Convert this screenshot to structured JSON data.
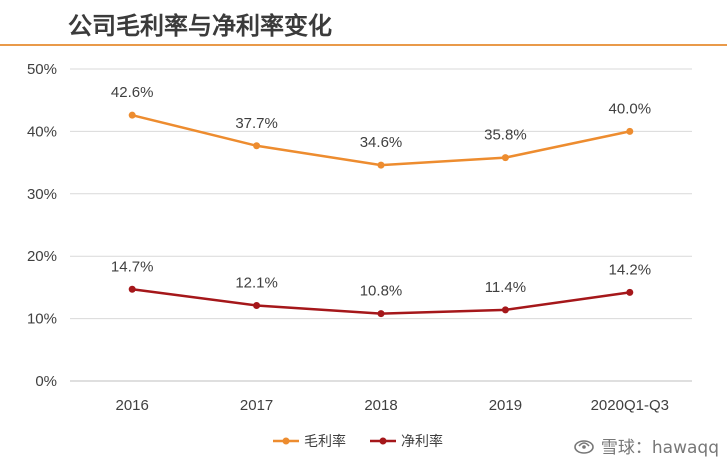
{
  "title": "公司毛利率与净利率变化",
  "watermark": "雪球：hawaqq",
  "chart_data": {
    "type": "line",
    "title": "公司毛利率与净利率变化",
    "categories": [
      "2016",
      "2017",
      "2018",
      "2019",
      "2020Q1-Q3"
    ],
    "yticks": [
      "0%",
      "10%",
      "20%",
      "30%",
      "40%",
      "50%"
    ],
    "ylim": [
      0,
      50
    ],
    "grid": true,
    "legend_position": "bottom",
    "series": [
      {
        "name": "毛利率",
        "color": "#ED8C2F",
        "values": [
          42.6,
          37.7,
          34.6,
          35.8,
          40.0
        ],
        "labels": [
          "42.6%",
          "37.7%",
          "34.6%",
          "35.8%",
          "40.0%"
        ]
      },
      {
        "name": "净利率",
        "color": "#A5171A",
        "values": [
          14.7,
          12.1,
          10.8,
          11.4,
          14.2
        ],
        "labels": [
          "14.7%",
          "12.1%",
          "10.8%",
          "11.4%",
          "14.2%"
        ]
      }
    ]
  }
}
